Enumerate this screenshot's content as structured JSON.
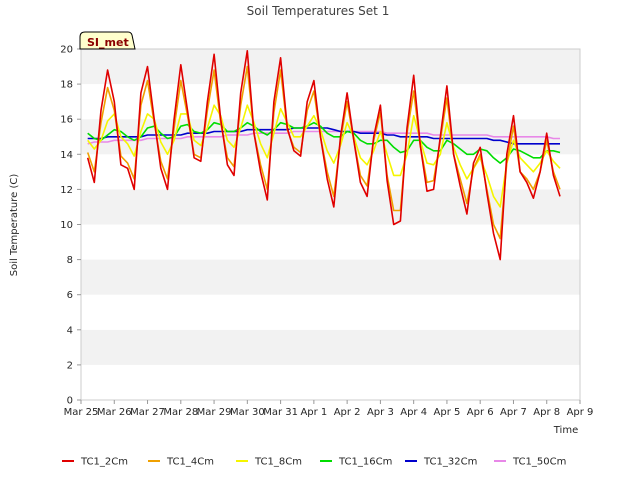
{
  "chart_data": {
    "type": "line",
    "title": "Soil Temperatures Set 1",
    "badge": "SI_met",
    "xlabel": "Time",
    "ylabel": "Soil Temperature (C)",
    "ylim": [
      0,
      20
    ],
    "yticks": [
      0,
      2,
      4,
      6,
      8,
      10,
      12,
      14,
      16,
      18,
      20
    ],
    "xticks": [
      "Mar 25",
      "Mar 26",
      "Mar 27",
      "Mar 28",
      "Mar 29",
      "Mar 30",
      "Mar 31",
      "Apr 1",
      "Apr 2",
      "Apr 3",
      "Apr 4",
      "Apr 5",
      "Apr 6",
      "Apr 7",
      "Apr 8",
      "Apr 9"
    ],
    "grid": "horizontal bands",
    "legend_position": "bottom",
    "x": [
      0.2,
      0.4,
      0.6,
      0.8,
      1.0,
      1.2,
      1.4,
      1.6,
      1.8,
      2.0,
      2.2,
      2.4,
      2.6,
      2.8,
      3.0,
      3.2,
      3.4,
      3.6,
      3.8,
      4.0,
      4.2,
      4.4,
      4.6,
      4.8,
      5.0,
      5.2,
      5.4,
      5.6,
      5.8,
      6.0,
      6.2,
      6.4,
      6.6,
      6.8,
      7.0,
      7.2,
      7.4,
      7.6,
      7.8,
      8.0,
      8.2,
      8.4,
      8.6,
      8.8,
      9.0,
      9.2,
      9.4,
      9.6,
      9.8,
      10.0,
      10.2,
      10.4,
      10.6,
      10.8,
      11.0,
      11.2,
      11.4,
      11.6,
      11.8,
      12.0,
      12.2,
      12.4,
      12.6,
      12.8,
      13.0,
      13.2,
      13.4,
      13.6,
      13.8,
      14.0,
      14.2,
      14.4
    ],
    "series": [
      {
        "name": "TC1_2Cm",
        "color": "#e00000",
        "values": [
          13.8,
          12.4,
          16.5,
          18.8,
          17.0,
          13.4,
          13.2,
          12.0,
          17.5,
          19.0,
          16.0,
          13.2,
          12.0,
          16.0,
          19.1,
          16.5,
          13.8,
          13.6,
          17.0,
          19.7,
          16.0,
          13.4,
          12.8,
          17.5,
          19.9,
          15.2,
          13.0,
          11.4,
          17.0,
          19.5,
          15.5,
          14.2,
          13.9,
          17.0,
          18.2,
          15.0,
          12.6,
          11.0,
          15.0,
          17.5,
          14.8,
          12.4,
          11.6,
          15.0,
          16.8,
          12.5,
          10.0,
          10.2,
          15.5,
          18.5,
          14.5,
          11.9,
          12.0,
          15.0,
          17.9,
          14.0,
          12.2,
          10.6,
          13.5,
          14.4,
          11.8,
          9.5,
          8.0,
          14.0,
          16.2,
          13.0,
          12.4,
          11.5,
          13.0,
          15.2,
          12.8,
          11.6
        ]
      },
      {
        "name": "TC1_4Cm",
        "color": "#f0a000",
        "values": [
          14.1,
          13.0,
          15.8,
          17.8,
          16.5,
          13.9,
          13.5,
          12.6,
          16.8,
          18.2,
          15.8,
          13.6,
          12.6,
          15.5,
          18.2,
          16.2,
          14.0,
          13.8,
          16.5,
          18.8,
          15.8,
          13.8,
          13.3,
          16.8,
          19.0,
          15.2,
          13.4,
          12.0,
          16.4,
          18.8,
          15.4,
          14.4,
          14.1,
          16.5,
          17.6,
          15.0,
          13.0,
          11.6,
          14.8,
          17.0,
          14.8,
          12.8,
          12.2,
          14.8,
          16.4,
          12.8,
          10.8,
          10.8,
          15.2,
          17.6,
          14.5,
          12.4,
          12.5,
          14.8,
          17.2,
          14.0,
          12.6,
          11.2,
          13.2,
          14.0,
          12.0,
          10.0,
          9.2,
          13.5,
          15.6,
          13.0,
          12.6,
          12.0,
          13.0,
          14.8,
          13.0,
          12.0
        ]
      },
      {
        "name": "TC1_8Cm",
        "color": "#f5f500",
        "values": [
          14.8,
          14.3,
          14.8,
          15.9,
          16.3,
          15.0,
          14.6,
          13.9,
          15.3,
          16.3,
          16.0,
          14.7,
          14.0,
          14.8,
          16.3,
          16.3,
          14.8,
          14.5,
          15.5,
          16.8,
          16.2,
          14.8,
          14.4,
          15.5,
          16.8,
          15.8,
          14.6,
          13.8,
          15.2,
          16.6,
          15.8,
          15.0,
          15.0,
          15.6,
          16.2,
          15.4,
          14.2,
          13.5,
          14.5,
          15.8,
          15.0,
          13.8,
          13.4,
          14.2,
          15.3,
          14.0,
          12.8,
          12.8,
          14.0,
          16.2,
          14.8,
          13.5,
          13.4,
          14.0,
          15.8,
          14.4,
          13.4,
          12.6,
          13.2,
          13.8,
          12.8,
          11.6,
          11.0,
          13.5,
          14.8,
          13.8,
          13.4,
          13.0,
          13.5,
          14.2,
          13.6,
          13.2
        ]
      },
      {
        "name": "TC1_16Cm",
        "color": "#00dd00",
        "values": [
          15.2,
          14.9,
          14.8,
          15.1,
          15.4,
          15.3,
          15.0,
          14.8,
          15.0,
          15.5,
          15.6,
          15.2,
          14.9,
          15.0,
          15.6,
          15.7,
          15.3,
          15.2,
          15.4,
          15.8,
          15.7,
          15.3,
          15.3,
          15.5,
          15.8,
          15.6,
          15.3,
          15.1,
          15.4,
          15.8,
          15.7,
          15.5,
          15.5,
          15.6,
          15.8,
          15.6,
          15.2,
          15.0,
          15.0,
          15.3,
          15.2,
          14.8,
          14.6,
          14.6,
          14.8,
          14.8,
          14.4,
          14.1,
          14.2,
          14.8,
          14.8,
          14.4,
          14.2,
          14.2,
          14.8,
          14.6,
          14.3,
          14.0,
          14.0,
          14.3,
          14.2,
          13.8,
          13.5,
          13.8,
          14.3,
          14.2,
          14.0,
          13.8,
          13.8,
          14.2,
          14.2,
          14.1
        ]
      },
      {
        "name": "TC1_32Cm",
        "color": "#0000cc",
        "values": [
          14.9,
          14.9,
          14.9,
          15.0,
          15.0,
          15.0,
          15.0,
          15.0,
          15.0,
          15.1,
          15.1,
          15.1,
          15.1,
          15.1,
          15.1,
          15.2,
          15.2,
          15.2,
          15.2,
          15.3,
          15.3,
          15.3,
          15.3,
          15.3,
          15.4,
          15.4,
          15.4,
          15.4,
          15.4,
          15.4,
          15.4,
          15.5,
          15.5,
          15.5,
          15.5,
          15.5,
          15.5,
          15.4,
          15.3,
          15.3,
          15.3,
          15.2,
          15.2,
          15.2,
          15.2,
          15.1,
          15.1,
          15.0,
          15.0,
          15.0,
          15.0,
          15.0,
          14.9,
          14.9,
          14.9,
          14.9,
          14.9,
          14.9,
          14.9,
          14.9,
          14.9,
          14.8,
          14.8,
          14.7,
          14.6,
          14.6,
          14.6,
          14.6,
          14.6,
          14.6,
          14.6,
          14.6
        ]
      },
      {
        "name": "TC1_50Cm",
        "color": "#e888e8",
        "values": [
          14.6,
          14.7,
          14.7,
          14.7,
          14.8,
          14.8,
          14.8,
          14.8,
          14.8,
          14.9,
          14.9,
          14.9,
          14.9,
          14.9,
          14.9,
          15.0,
          15.0,
          15.0,
          15.0,
          15.0,
          15.0,
          15.1,
          15.1,
          15.1,
          15.1,
          15.2,
          15.2,
          15.2,
          15.2,
          15.2,
          15.2,
          15.3,
          15.3,
          15.3,
          15.3,
          15.3,
          15.3,
          15.3,
          15.3,
          15.3,
          15.3,
          15.3,
          15.3,
          15.3,
          15.3,
          15.2,
          15.2,
          15.2,
          15.2,
          15.2,
          15.2,
          15.2,
          15.1,
          15.1,
          15.1,
          15.1,
          15.1,
          15.1,
          15.1,
          15.1,
          15.1,
          15.0,
          15.0,
          15.0,
          15.0,
          15.0,
          15.0,
          15.0,
          15.0,
          15.0,
          14.9,
          14.9
        ]
      }
    ]
  }
}
